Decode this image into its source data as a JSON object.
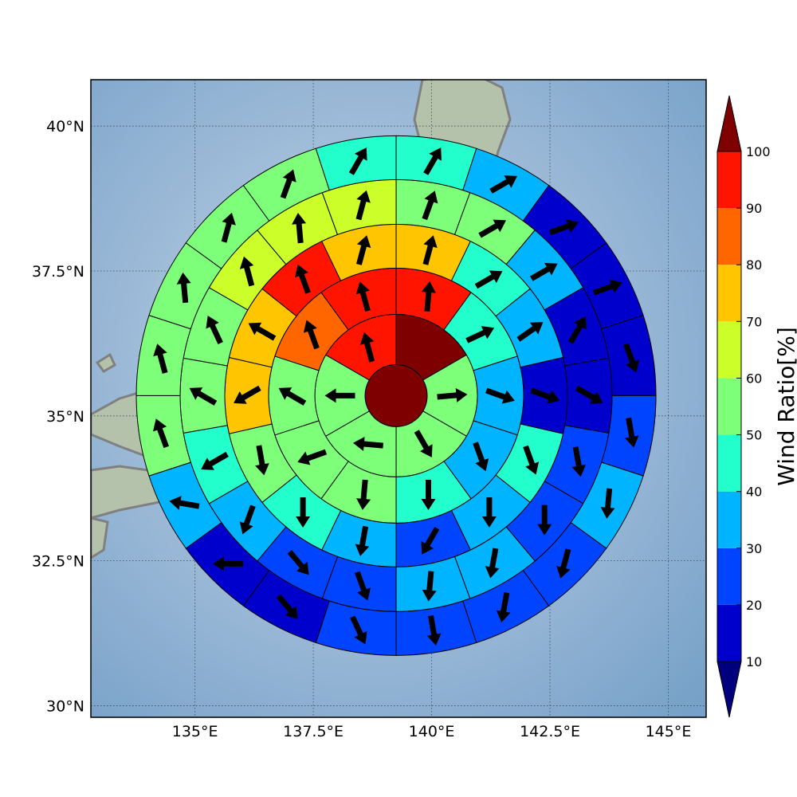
{
  "chart_data": {
    "type": "heatmap",
    "title": "",
    "xlabel": "",
    "ylabel": "",
    "xlim": [
      132.8,
      145.8
    ],
    "ylim": [
      29.8,
      40.8
    ],
    "x_ticks": [
      135.0,
      137.5,
      140.0,
      142.5,
      145.0
    ],
    "x_tick_labels": [
      "135°E",
      "137.5°E",
      "140°E",
      "142.5°E",
      "145°E"
    ],
    "y_ticks": [
      30.0,
      32.5,
      35.0,
      37.5,
      40.0
    ],
    "y_tick_labels": [
      "30°N",
      "32.5°N",
      "35°N",
      "37.5°N",
      "40°N"
    ],
    "grid": true,
    "basemap": "shaded relief with coastlines",
    "polar_grid": {
      "center_lon": 139.25,
      "center_lat": 35.35,
      "note": "rings of sectors; sector angles clockwise from north in degrees; arrow direction is where wind blows toward",
      "rings": [
        {
          "ratios": [
            100
          ],
          "arrow_dirs": [
            null
          ]
        },
        {
          "ratios": [
            100,
            55,
            55,
            55,
            55,
            95
          ],
          "sector_start": 0,
          "sector_width": 60,
          "arrow_dirs": [
            null,
            85,
            150,
            275,
            270,
            345
          ]
        },
        {
          "ratios": [
            95,
            45,
            35,
            35,
            45,
            55,
            55,
            55,
            85,
            95
          ],
          "sector_start": 0,
          "sector_width": 36,
          "arrow_dirs": [
            5,
            65,
            110,
            160,
            180,
            185,
            250,
            300,
            340,
            345
          ]
        },
        {
          "ratios": [
            75,
            45,
            35,
            15,
            45,
            35,
            25,
            35,
            45,
            55,
            75,
            75,
            95,
            75
          ],
          "sector_start": 0,
          "sector_width": 25.71,
          "arrow_dirs": [
            15,
            60,
            55,
            110,
            160,
            180,
            210,
            190,
            180,
            170,
            240,
            300,
            340,
            15
          ]
        },
        {
          "ratios": [
            55,
            55,
            35,
            15,
            15,
            25,
            25,
            35,
            35,
            25,
            25,
            35,
            45,
            55,
            55,
            65,
            65,
            65
          ],
          "sector_start": 0,
          "sector_width": 20,
          "arrow_dirs": [
            20,
            60,
            60,
            30,
            120,
            170,
            180,
            190,
            185,
            160,
            140,
            200,
            240,
            300,
            335,
            345,
            355,
            15
          ]
        },
        {
          "ratios": [
            45,
            35,
            15,
            15,
            15,
            25,
            35,
            25,
            25,
            25,
            25,
            15,
            15,
            35,
            55,
            55,
            55,
            55,
            55,
            45
          ],
          "sector_start": 0,
          "sector_width": 18,
          "arrow_dirs": [
            30,
            60,
            70,
            70,
            160,
            170,
            185,
            195,
            190,
            170,
            155,
            140,
            270,
            280,
            340,
            345,
            355,
            15,
            20,
            30
          ]
        }
      ]
    },
    "colorbar": {
      "label": "Wind Ratio[%]",
      "boundaries": [
        10,
        20,
        30,
        40,
        50,
        60,
        70,
        80,
        90,
        100
      ],
      "tick_labels": [
        "10",
        "20",
        "30",
        "40",
        "50",
        "60",
        "70",
        "80",
        "90",
        "100"
      ],
      "colors": [
        "#0000cc",
        "#0044ff",
        "#00b4ff",
        "#23ffcc",
        "#7dff7a",
        "#ccff2a",
        "#ffc600",
        "#ff6600",
        "#ff1400"
      ],
      "under_color": "#00007f",
      "over_color": "#7f0000",
      "extend": "both"
    }
  },
  "colors": {
    "ocean": "#86acd0",
    "ocean_light": "#c9daea",
    "land": "#b8c4b0",
    "coastline": "#808080",
    "arrow": "#000000"
  }
}
